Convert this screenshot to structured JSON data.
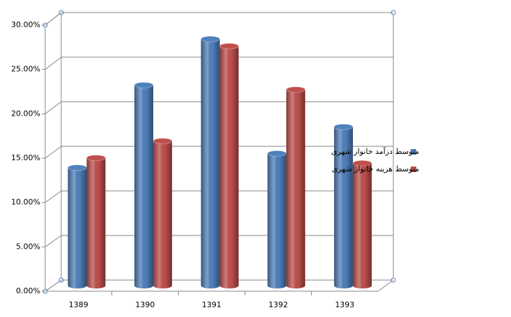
{
  "chart_data": {
    "type": "bar",
    "categories": [
      "1389",
      "1390",
      "1391",
      "1392",
      "1393"
    ],
    "series": [
      {
        "name": "متوسط درآمد خانوار شهری",
        "color": "#4f81bd",
        "values": [
          13.3,
          22.6,
          27.8,
          14.9,
          17.9
        ]
      },
      {
        "name": "متوسط هزینه خانوار شهری",
        "color": "#c0504d",
        "values": [
          14.4,
          16.3,
          27.0,
          22.1,
          13.8
        ]
      }
    ],
    "ylim": [
      0,
      30
    ],
    "yticks": [
      {
        "value": 0,
        "label": "0.00%"
      },
      {
        "value": 5,
        "label": "5.00%"
      },
      {
        "value": 10,
        "label": "10.00%"
      },
      {
        "value": 15,
        "label": "15.00%"
      },
      {
        "value": 20,
        "label": "20.00%"
      },
      {
        "value": 25,
        "label": "25.00%"
      },
      {
        "value": 30,
        "label": "30.00%"
      }
    ],
    "grid": true,
    "legend": "right"
  }
}
